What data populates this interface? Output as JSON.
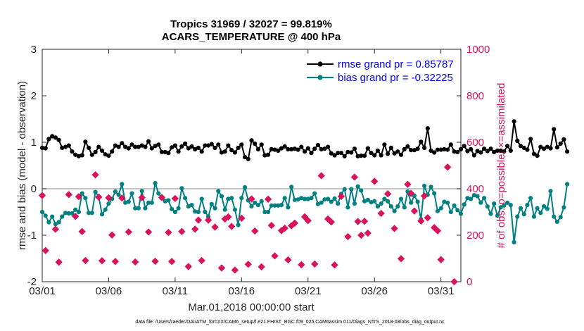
{
  "chart_data": {
    "type": "line",
    "title_line1": "Tropics 31969 / 32027 = 99.819%",
    "title_line2": "ACARS_TEMPERATURE @ 400 hPa",
    "xlabel": "Mar.01,2018 00:00:00 start",
    "ylabel_left": "rmse and bias (model - observation)",
    "ylabel_right": "# of obs: o=possible; ×=assimilated",
    "footnote": "data file: /Users/raeder/DAI/ATM_forcXX/CAM6_setup/f.e21.FHIST_BGC.f09_025.CAM6assim.011/Diags_NTrS_2018-03/obs_diag_output.nc",
    "xlim": [
      1,
      32.5
    ],
    "ylim_left": [
      -2,
      3
    ],
    "ylim_right": [
      0,
      1000
    ],
    "x_ticks": [
      1,
      6,
      11,
      16,
      21,
      26,
      31
    ],
    "x_tick_labels": [
      "03/01",
      "03/06",
      "03/11",
      "03/16",
      "03/21",
      "03/26",
      "03/31"
    ],
    "y_left_ticks": [
      -2,
      -1,
      0,
      1,
      2,
      3
    ],
    "y_left_tick_labels": [
      "-2",
      "-1",
      "0",
      "1",
      "2",
      "3"
    ],
    "y_right_ticks": [
      0,
      200,
      400,
      600,
      800,
      1000
    ],
    "y_right_tick_labels": [
      "0",
      "200",
      "400",
      "600",
      "800",
      "1000"
    ],
    "zero_line": 0,
    "x_start": 1,
    "x_step": 0.25,
    "series": [
      {
        "name": "rmse grand pr = 0.85787",
        "color": "#000000",
        "text_color": "#0000ff",
        "axis": "left",
        "values": [
          0.88,
          0.87,
          1.07,
          1.13,
          1.1,
          1.05,
          0.88,
          0.9,
          0.93,
          0.8,
          0.73,
          0.7,
          0.72,
          1.01,
          0.88,
          0.73,
          0.79,
          0.9,
          0.82,
          0.74,
          0.71,
          0.8,
          0.93,
          0.9,
          0.98,
          0.9,
          0.87,
          0.95,
          0.9,
          0.9,
          0.93,
          0.9,
          1.02,
          0.87,
          0.92,
          0.95,
          0.79,
          0.79,
          0.77,
          0.89,
          0.93,
          0.8,
          0.91,
          0.97,
          0.87,
          0.91,
          0.85,
          0.88,
          0.8,
          0.93,
          0.93,
          0.96,
          0.88,
          0.95,
          0.78,
          0.8,
          0.93,
          0.83,
          0.78,
          0.88,
          0.95,
          0.68,
          0.64,
          1.04,
          0.97,
          0.85,
          0.95,
          0.72,
          0.73,
          0.85,
          0.84,
          0.82,
          0.87,
          0.91,
          0.85,
          0.85,
          0.86,
          0.84,
          0.9,
          0.8,
          0.87,
          0.77,
          0.86,
          0.94,
          0.85,
          0.86,
          0.9,
          0.76,
          0.72,
          0.77,
          0.77,
          0.7,
          0.79,
          0.78,
          0.86,
          0.7,
          0.71,
          0.71,
          0.87,
          0.77,
          0.72,
          0.82,
          0.72,
          0.95,
          0.75,
          0.88,
          0.76,
          0.8,
          0.73,
          0.85,
          0.91,
          0.83,
          0.83,
          0.86,
          1.01,
          0.88,
          1.3,
          0.82,
          0.78,
          0.84,
          0.84,
          0.85,
          0.84,
          0.95,
          0.8,
          0.79,
          0.85,
          0.92,
          0.81,
          0.85,
          0.72,
          0.81,
          0.78,
          0.86,
          0.81,
          0.86,
          0.79,
          0.82,
          0.82,
          0.8,
          0.92,
          0.82,
          1.45,
          1.03,
          0.92,
          0.88,
          0.84,
          1.07,
          0.75,
          0.71,
          0.9,
          0.86,
          0.9,
          0.87,
          1.28,
          0.89,
          0.97,
          1.06,
          0.8
        ]
      },
      {
        "name": "bias grand pr = -0.32225",
        "color": "#008080",
        "text_color": "#0000ff",
        "axis": "left",
        "values": [
          -0.5,
          -0.58,
          -0.72,
          -0.6,
          -0.76,
          -0.72,
          -0.6,
          -0.52,
          -0.53,
          -0.53,
          -0.45,
          -0.5,
          -0.1,
          -0.2,
          -0.52,
          -0.52,
          -0.07,
          -0.17,
          -0.55,
          -0.45,
          -0.32,
          -0.22,
          -0.06,
          -0.13,
          0.1,
          -0.3,
          -0.28,
          -0.1,
          -0.42,
          -0.42,
          -0.05,
          -0.42,
          -0.3,
          -0.3,
          0.12,
          -0.1,
          -0.2,
          -0.27,
          -0.25,
          -0.44,
          -0.5,
          -0.42,
          0.01,
          -0.2,
          -0.38,
          -0.35,
          -0.49,
          -0.5,
          -0.22,
          -0.5,
          -0.6,
          -0.33,
          -0.42,
          -0.05,
          -0.16,
          -0.45,
          -0.22,
          -0.2,
          -0.45,
          -0.78,
          -0.2,
          0.03,
          -0.25,
          -0.38,
          -0.3,
          -0.35,
          -0.27,
          -0.5,
          -0.5,
          -0.36,
          -0.36,
          -0.36,
          -0.35,
          -0.2,
          -0.4,
          0.04,
          -0.24,
          -0.23,
          -0.2,
          -0.22,
          -0.22,
          -0.2,
          -0.1,
          -0.33,
          -0.3,
          -0.23,
          -0.22,
          -0.28,
          -0.21,
          -0.32,
          -0.11,
          -0.01,
          -0.4,
          -0.01,
          -0.32,
          0.05,
          -0.04,
          -0.27,
          -0.24,
          -0.29,
          -0.27,
          -0.38,
          -0.32,
          -0.22,
          -0.27,
          -0.38,
          -0.48,
          -0.38,
          -0.22,
          -0.4,
          -0.06,
          -0.3,
          -0.15,
          -0.28,
          -0.66,
          0.06,
          -0.13,
          0.04,
          -0.1,
          -0.48,
          -0.42,
          -0.28,
          -0.3,
          -0.5,
          -0.36,
          -0.46,
          -0.54,
          -0.34,
          -0.2,
          -0.22,
          -0.14,
          -0.16,
          -0.3,
          -0.2,
          -0.38,
          -0.54,
          -0.32,
          -0.58,
          -0.4,
          -0.36,
          -0.3,
          -0.35,
          -1.15,
          -0.6,
          -0.42,
          -0.55,
          -0.35,
          -0.2,
          -0.6,
          -0.42,
          -0.52,
          -0.38,
          -0.43,
          -0.05,
          -0.6,
          -0.71,
          -0.61,
          -0.4,
          0.1
        ]
      }
    ],
    "obs_points": {
      "name": "# of obs",
      "color": "#d8125b",
      "axis": "right",
      "x": [
        1.0,
        1.25,
        2.0,
        2.25,
        3.0,
        3.5,
        3.75,
        4.0,
        4.25,
        5.0,
        5.25,
        5.5,
        6.0,
        6.25,
        6.5,
        7.0,
        7.5,
        8.0,
        8.5,
        9.0,
        9.5,
        10.0,
        10.5,
        10.75,
        11.0,
        11.5,
        12.0,
        12.5,
        12.75,
        13.0,
        13.5,
        14.0,
        14.5,
        14.75,
        15.0,
        15.25,
        15.5,
        16.0,
        16.5,
        16.75,
        17.0,
        17.5,
        18.0,
        18.25,
        18.5,
        19.0,
        19.25,
        19.5,
        19.75,
        20.0,
        20.5,
        20.75,
        21.0,
        21.5,
        22.0,
        22.5,
        22.75,
        23.0,
        23.5,
        24.0,
        24.5,
        24.75,
        25.0,
        25.25,
        25.5,
        26.0,
        26.5,
        27.0,
        27.5,
        28.0,
        28.5,
        28.75,
        29.0,
        29.5,
        29.75,
        30.0,
        30.5,
        30.75,
        31.0,
        31.5,
        32.0
      ],
      "values": [
        371,
        134,
        226,
        84,
        375,
        281,
        366,
        216,
        91,
        460,
        364,
        90,
        361,
        201,
        87,
        360,
        214,
        85,
        362,
        214,
        88,
        362,
        212,
        87,
        358,
        216,
        65,
        226,
        265,
        91,
        265,
        235,
        59,
        270,
        279,
        238,
        50,
        273,
        75,
        356,
        218,
        64,
        355,
        242,
        111,
        220,
        230,
        94,
        241,
        252,
        73,
        279,
        263,
        76,
        456,
        270,
        257,
        72,
        367,
        194,
        450,
        259,
        200,
        260,
        209,
        432,
        294,
        378,
        229,
        99,
        419,
        380,
        304,
        261,
        369,
        275,
        233,
        219,
        95,
        493,
        0
      ]
    },
    "legend_position": "top-right"
  }
}
